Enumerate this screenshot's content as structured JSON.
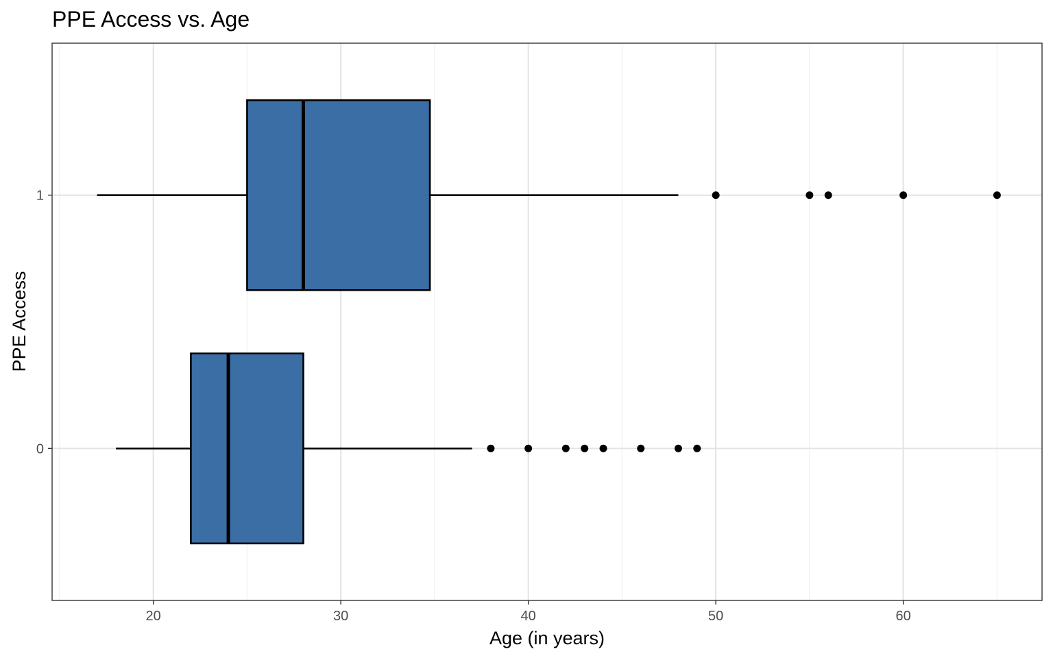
{
  "chart_data": {
    "type": "boxplot",
    "orientation": "horizontal",
    "title": "PPE Access vs. Age",
    "xlabel": "Age (in years)",
    "ylabel": "PPE Access",
    "xlim": [
      14.6,
      67.4
    ],
    "x_ticks": [
      20,
      30,
      40,
      50,
      60
    ],
    "x_tick_labels": [
      "20",
      "30",
      "40",
      "50",
      "60"
    ],
    "grid": true,
    "legend": "none",
    "fill_color": "#3a6ea5",
    "categories": [
      "0",
      "1"
    ],
    "boxes": [
      {
        "category": "0",
        "whisker_low": 18,
        "q1": 22,
        "median": 24,
        "q3": 28,
        "whisker_high": 37,
        "outliers": [
          38,
          40,
          42,
          43,
          44,
          46,
          48,
          49
        ]
      },
      {
        "category": "1",
        "whisker_low": 17,
        "q1": 25,
        "median": 28,
        "q3": 34.75,
        "whisker_high": 48,
        "outliers": [
          50,
          55,
          56,
          60,
          65
        ]
      }
    ]
  }
}
